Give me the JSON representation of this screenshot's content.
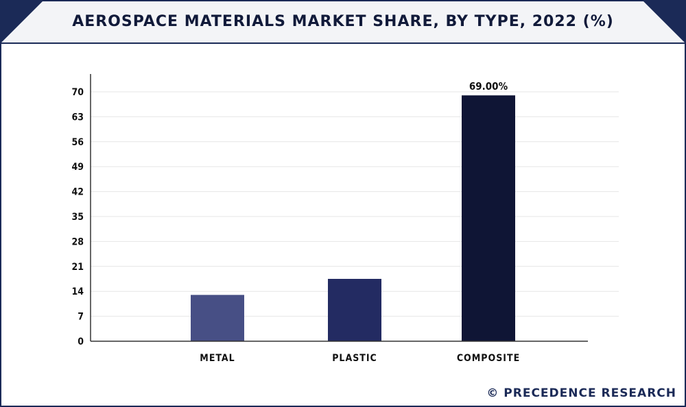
{
  "header": {
    "title": "AEROSPACE MATERIALS MARKET SHARE, BY TYPE, 2022 (%)"
  },
  "footer": {
    "credit": "© PRECEDENCE RESEARCH"
  },
  "chart_data": {
    "type": "bar",
    "title": "AEROSPACE MATERIALS MARKET SHARE, BY TYPE, 2022 (%)",
    "categories": [
      "METAL",
      "PLASTIC",
      "COMPOSITE"
    ],
    "values": [
      13,
      17.5,
      69
    ],
    "data_labels": [
      "",
      "",
      "69.00%"
    ],
    "ylim": [
      0,
      70
    ],
    "yticks": [
      0,
      7,
      14,
      21,
      28,
      35,
      42,
      49,
      56,
      63,
      70
    ],
    "grid": true,
    "colors": [
      "#474f85",
      "#232b62",
      "#0f1535"
    ]
  }
}
